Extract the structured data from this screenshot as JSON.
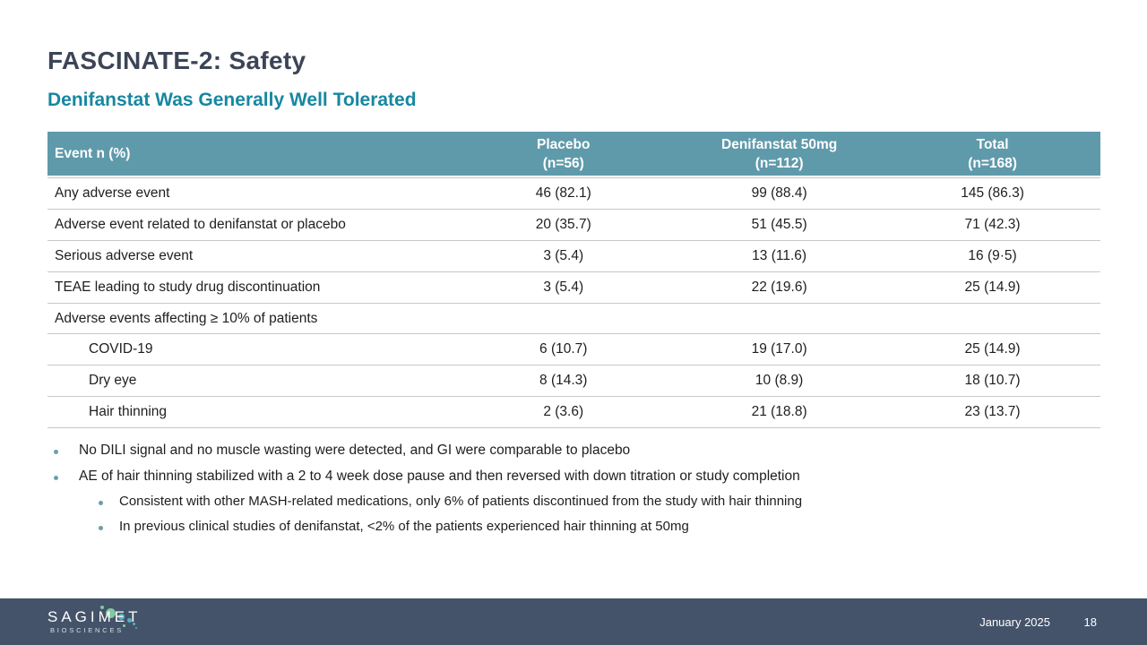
{
  "slide": {
    "title": "FASCINATE-2: Safety",
    "subtitle": "Denifanstat Was Generally Well Tolerated"
  },
  "table": {
    "header": {
      "event": "Event n (%)",
      "col1_line1": "Placebo",
      "col1_line2": "(n=56)",
      "col2_line1": "Denifanstat 50mg",
      "col2_line2": "(n=112)",
      "col3_line1": "Total",
      "col3_line2": "(n=168)"
    },
    "rows": [
      {
        "label": "Any adverse event",
        "placebo": "46 (82.1)",
        "denifanstat": "99 (88.4)",
        "total": "145 (86.3)"
      },
      {
        "label": "Adverse event related to denifanstat or placebo",
        "placebo": "20 (35.7)",
        "denifanstat": "51 (45.5)",
        "total": "71 (42.3)"
      },
      {
        "label": "Serious adverse event",
        "placebo": "3 (5.4)",
        "denifanstat": "13 (11.6)",
        "total": "16 (9·5)"
      },
      {
        "label": "TEAE leading to study drug discontinuation",
        "placebo": "3 (5.4)",
        "denifanstat": "22 (19.6)",
        "total": "25 (14.9)"
      },
      {
        "label": "Adverse events affecting ≥ 10% of patients",
        "placebo": "",
        "denifanstat": "",
        "total": ""
      },
      {
        "label": "COVID-19",
        "placebo": "6 (10.7)",
        "denifanstat": "19 (17.0)",
        "total": "25 (14.9)"
      },
      {
        "label": "Dry eye",
        "placebo": "8 (14.3)",
        "denifanstat": "10 (8.9)",
        "total": "18 (10.7)"
      },
      {
        "label": "Hair thinning",
        "placebo": "2 (3.6)",
        "denifanstat": "21 (18.8)",
        "total": "23 (13.7)"
      }
    ]
  },
  "bullets": [
    {
      "text": "No DILI signal and no muscle wasting were detected, and GI were comparable to placebo"
    },
    {
      "text": "AE of hair thinning stabilized with a 2 to 4 week dose pause and then reversed with down titration or study completion"
    },
    {
      "text": "Consistent with other MASH-related medications, only 6% of patients discontinued from the study with hair thinning"
    },
    {
      "text": "In previous clinical studies of denifanstat, <2% of the patients experienced hair thinning at 50mg"
    }
  ],
  "footer": {
    "logo_name": "SAGIMET",
    "logo_sub": "BIOSCIENCES",
    "date": "January 2025",
    "page": "18"
  },
  "colors": {
    "title": "#3B4557",
    "subtitle": "#1787A0",
    "table_header_bg": "#5F9AAB",
    "row_divider": "#C8C8C8",
    "footer_bg": "#44536A",
    "bullet_dot": "#6B9FA8",
    "logo_green": "#82C7A0",
    "logo_teal": "#53B3C0"
  }
}
